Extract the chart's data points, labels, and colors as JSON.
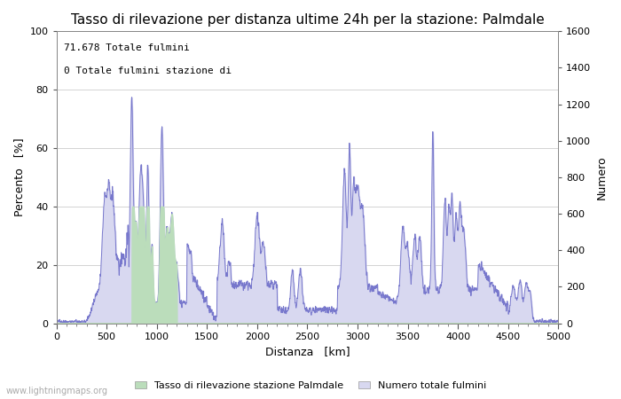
{
  "title": "Tasso di rilevazione per distanza ultime 24h per la stazione: Palmdale",
  "xlabel": "Distanza   [km]",
  "ylabel_left": "Percento   [%]",
  "ylabel_right": "Numero",
  "annotation_line1": "71.678 Totale fulmini",
  "annotation_line2": "0 Totale fulmini stazione di",
  "xlim": [
    0,
    5000
  ],
  "ylim_left": [
    0,
    100
  ],
  "ylim_right": [
    0,
    1600
  ],
  "xticks": [
    0,
    500,
    1000,
    1500,
    2000,
    2500,
    3000,
    3500,
    4000,
    4500,
    5000
  ],
  "yticks_left": [
    0,
    20,
    40,
    60,
    80,
    100
  ],
  "yticks_right": [
    0,
    200,
    400,
    600,
    800,
    1000,
    1200,
    1400,
    1600
  ],
  "legend_label_green": "Tasso di rilevazione stazione Palmdale",
  "legend_label_blue": "Numero totale fulmini",
  "watermark": "www.lightningmaps.org",
  "line_color": "#7777cc",
  "fill_color_blue": "#d8d8f0",
  "fill_color_green": "#bbddbb",
  "background_color": "#ffffff",
  "grid_color": "#cccccc",
  "title_fontsize": 11,
  "axis_label_fontsize": 9,
  "tick_fontsize": 8,
  "annotation_fontsize": 8
}
